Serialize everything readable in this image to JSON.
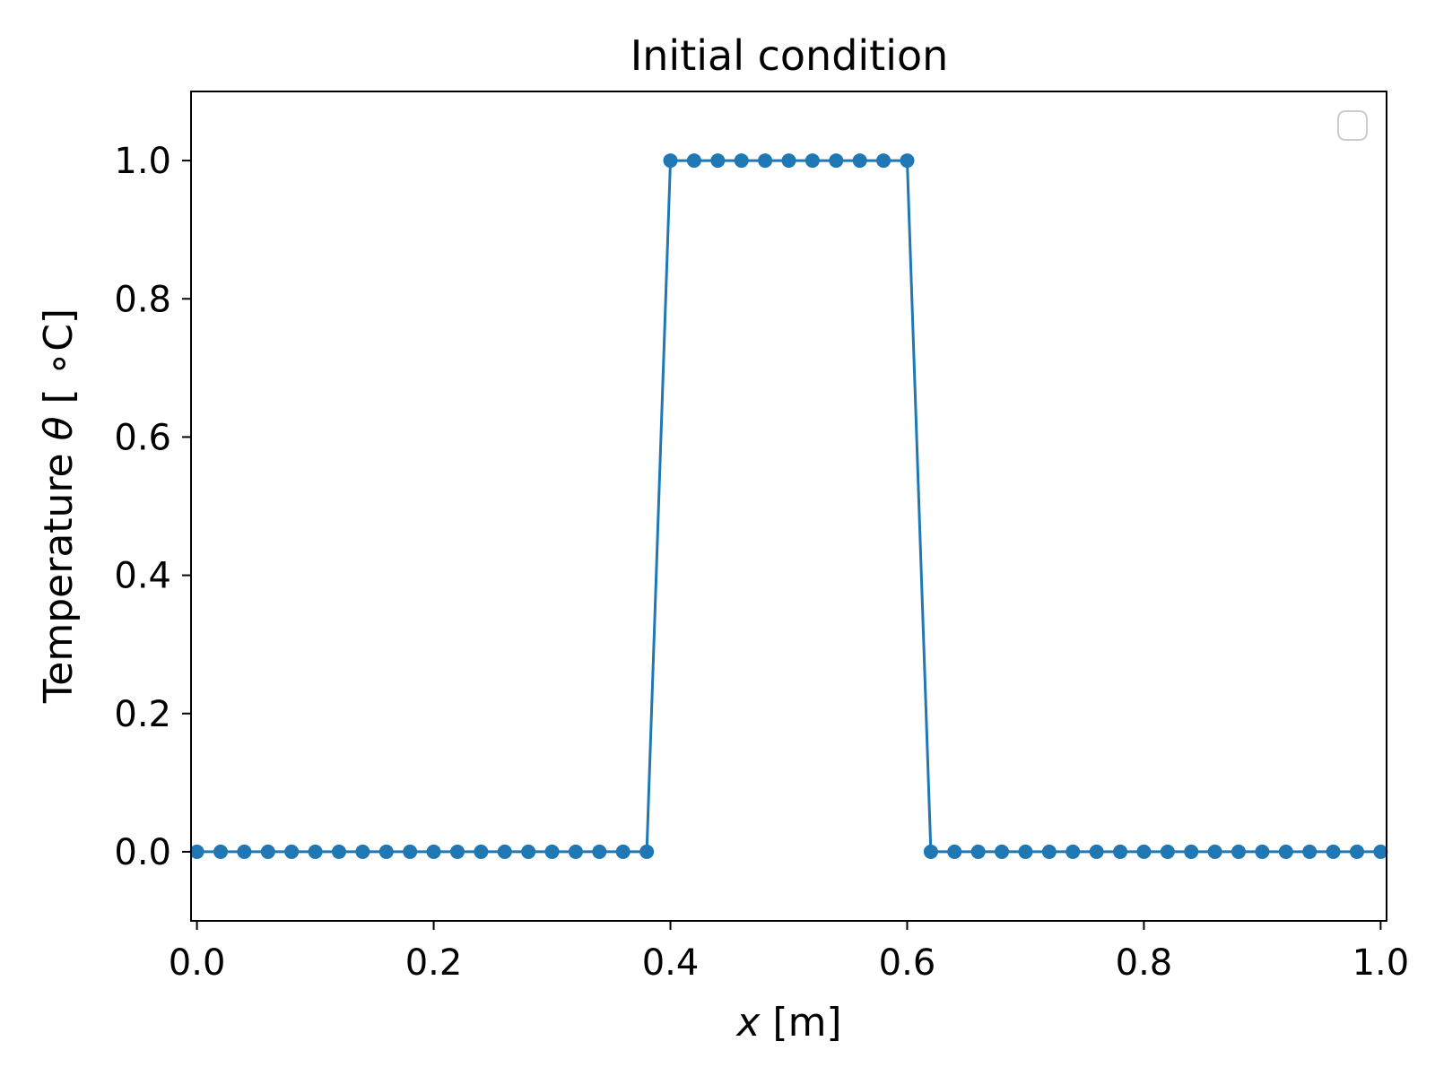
{
  "chart_data": {
    "type": "line",
    "title": "Initial condition",
    "xlabel": {
      "var": "x",
      "unit": " [m]"
    },
    "ylabel": {
      "prefix": "Temperature ",
      "var": "θ",
      "unit": " [ ∘C]"
    },
    "xlim": [
      -0.005,
      1.005
    ],
    "ylim": [
      -0.1,
      1.1
    ],
    "xticks": [
      0.0,
      0.2,
      0.4,
      0.6,
      0.8,
      1.0
    ],
    "xtick_labels": [
      "0.0",
      "0.2",
      "0.4",
      "0.6",
      "0.8",
      "1.0"
    ],
    "yticks": [
      0.0,
      0.2,
      0.4,
      0.6,
      0.8,
      1.0
    ],
    "ytick_labels": [
      "0.0",
      "0.2",
      "0.4",
      "0.6",
      "0.8",
      "1.0"
    ],
    "grid": false,
    "legend": "top-right",
    "color": "#1f77b4",
    "series": [
      {
        "marker": "circle",
        "x": [
          0.0,
          0.02,
          0.04,
          0.06,
          0.08,
          0.1,
          0.12,
          0.14,
          0.16,
          0.18,
          0.2,
          0.22,
          0.24,
          0.26,
          0.28,
          0.3,
          0.32,
          0.34,
          0.36,
          0.38,
          0.4,
          0.42,
          0.44,
          0.46,
          0.48,
          0.5,
          0.52,
          0.54,
          0.56,
          0.58,
          0.6,
          0.62,
          0.64,
          0.66,
          0.68,
          0.7,
          0.72,
          0.74,
          0.76,
          0.78,
          0.8,
          0.82,
          0.84,
          0.86,
          0.88,
          0.9,
          0.92,
          0.94,
          0.96,
          0.98,
          1.0
        ],
        "y": [
          0,
          0,
          0,
          0,
          0,
          0,
          0,
          0,
          0,
          0,
          0,
          0,
          0,
          0,
          0,
          0,
          0,
          0,
          0,
          0,
          1,
          1,
          1,
          1,
          1,
          1,
          1,
          1,
          1,
          1,
          1,
          0,
          0,
          0,
          0,
          0,
          0,
          0,
          0,
          0,
          0,
          0,
          0,
          0,
          0,
          0,
          0,
          0,
          0,
          0,
          0
        ]
      }
    ]
  }
}
